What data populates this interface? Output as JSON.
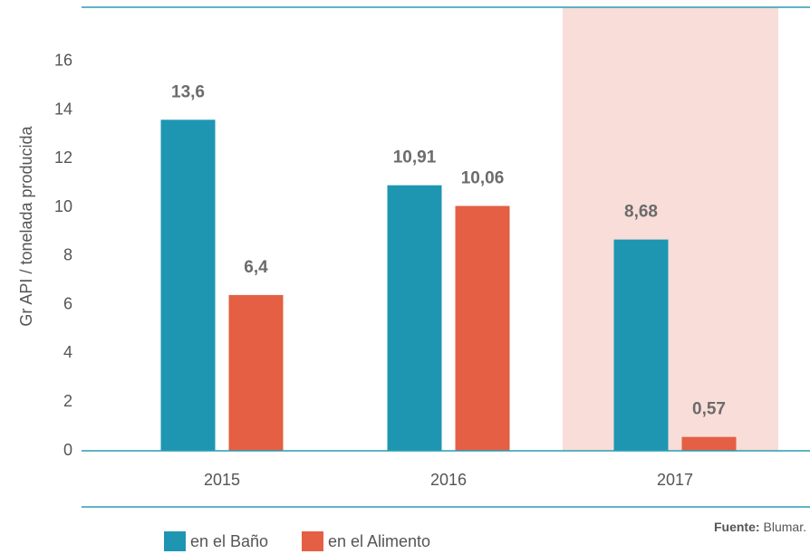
{
  "chart_data": {
    "type": "bar",
    "y_label": "Gr API / tonelada producida",
    "categories": [
      "2015",
      "2016",
      "2017"
    ],
    "series": [
      {
        "name": "en el Baño",
        "color": "#1e96b2",
        "values": [
          13.6,
          10.91,
          8.68
        ],
        "value_labels": [
          "13,6",
          "10,91",
          "8,68"
        ]
      },
      {
        "name": "en el Alimento",
        "color": "#e45f44",
        "values": [
          6.4,
          10.06,
          0.57
        ],
        "value_labels": [
          "6,4",
          "10,06",
          "0,57"
        ]
      }
    ],
    "ylim": [
      0,
      18
    ],
    "yticks": [
      0,
      2,
      4,
      6,
      8,
      10,
      12,
      14,
      16
    ],
    "grid": false,
    "source_label": "Fuente:",
    "source": "Blumar."
  }
}
